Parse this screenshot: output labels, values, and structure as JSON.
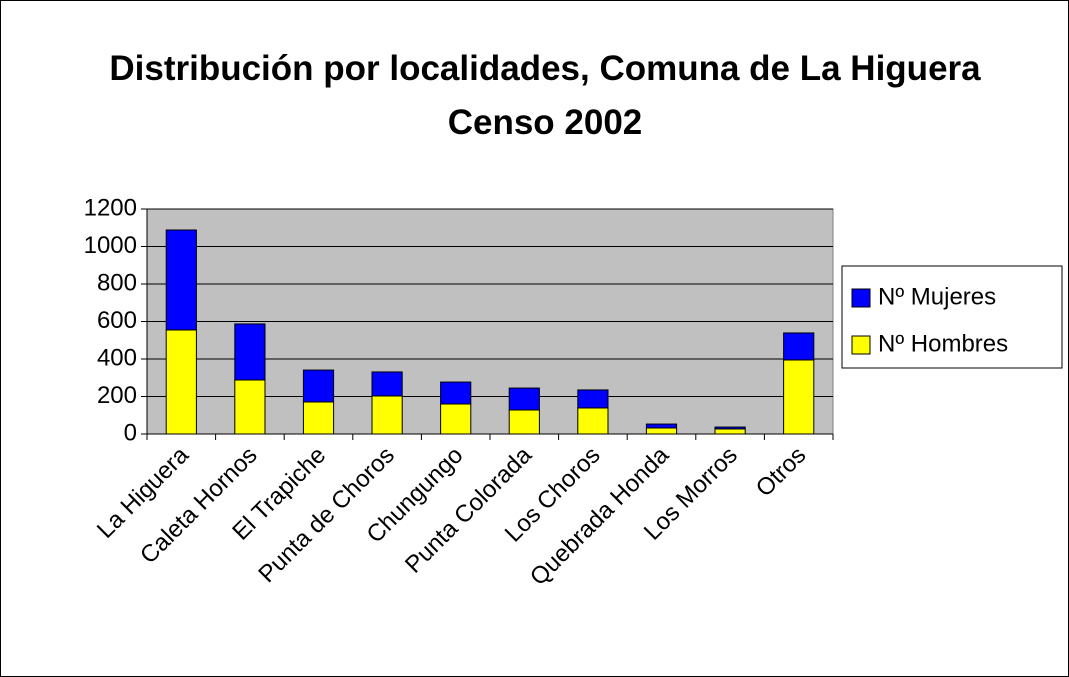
{
  "chart_data": {
    "type": "stacked_bar",
    "title": "Distribución por localidades, Comuna de La Higuera Censo 2002",
    "categories": [
      "La Higuera",
      "Caleta Hornos",
      "El Trapiche",
      "Punta de Choros",
      "Chungungo",
      "Punta Colorada",
      "Los Choros",
      "Quebrada Honda",
      "Los Morros",
      "Otros"
    ],
    "series": [
      {
        "name": "Nº Hombres",
        "color": "#ffff00",
        "values": [
          555,
          288,
          171,
          203,
          160,
          128,
          139,
          32,
          27,
          395
        ]
      },
      {
        "name": "Nº Mujeres",
        "color": "#0000ff",
        "values": [
          533,
          299,
          170,
          128,
          117,
          117,
          96,
          21,
          10,
          144
        ]
      }
    ],
    "ylim": [
      0,
      1200
    ],
    "yticks": [
      0,
      200,
      400,
      600,
      800,
      1000,
      1200
    ],
    "grid": true,
    "legend": "right"
  }
}
